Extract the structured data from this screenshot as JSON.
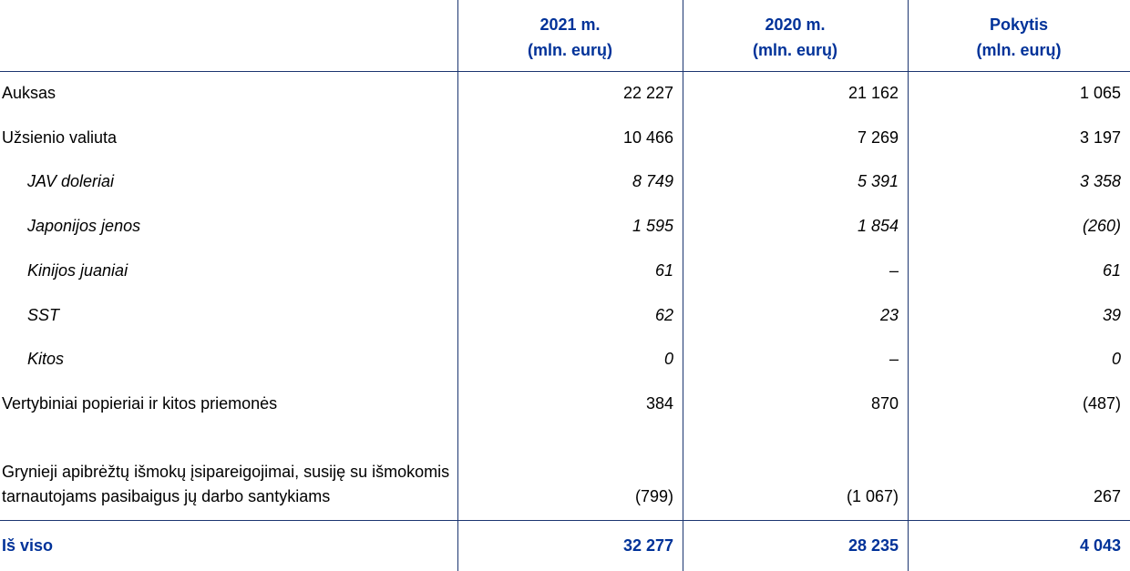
{
  "table": {
    "header": [
      [
        "2021 m.",
        "(mln. eurų)"
      ],
      [
        "2020 m.",
        "(mln. eurų)"
      ],
      [
        "Pokytis",
        "(mln. eurų)"
      ]
    ],
    "rows": [
      {
        "label": "Auksas",
        "values": [
          "22 227",
          "21 162",
          "1 065"
        ]
      },
      {
        "label": "Užsienio valiuta",
        "values": [
          "10 466",
          "7 269",
          "3 197"
        ]
      },
      {
        "label": "JAV doleriai",
        "values": [
          "8 749",
          "5 391",
          "3 358"
        ],
        "italic": true
      },
      {
        "label": "Japonijos jenos",
        "values": [
          "1 595",
          "1 854",
          "(260)"
        ],
        "italic": true
      },
      {
        "label": "Kinijos juaniai",
        "values": [
          "61",
          "–",
          "61"
        ],
        "italic": true
      },
      {
        "label": "SST",
        "values": [
          "62",
          "23",
          "39"
        ],
        "italic": true
      },
      {
        "label": "Kitos",
        "values": [
          "0",
          "–",
          "0"
        ],
        "italic": true
      },
      {
        "label": "Vertybiniai popieriai ir kitos priemonės",
        "values": [
          "384",
          "870",
          "(487)"
        ]
      },
      {
        "label": "Grynieji apibrėžtų išmokų įsipareigojimai, susiję su išmokomis tarnautojams pasibaigus jų darbo santykiams",
        "values": [
          "(799)",
          "(1 067)",
          "267"
        ]
      }
    ],
    "total": {
      "label": "Iš viso",
      "values": [
        "32 277",
        "28 235",
        "4 043"
      ]
    }
  }
}
